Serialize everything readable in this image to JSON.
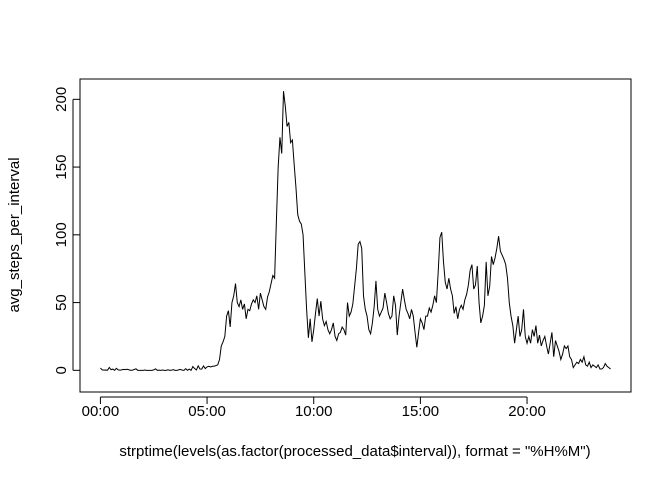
{
  "chart_data": {
    "type": "line",
    "xlabel": "strptime(levels(as.factor(processed_data$interval)), format = \"%H%M\")",
    "ylabel": "avg_steps_per_interval",
    "color": "#000000",
    "x": [
      "00:00",
      "00:05",
      "00:10",
      "00:15",
      "00:20",
      "00:25",
      "00:30",
      "00:35",
      "00:40",
      "00:45",
      "00:50",
      "00:55",
      "01:00",
      "01:05",
      "01:10",
      "01:15",
      "01:20",
      "01:25",
      "01:30",
      "01:35",
      "01:40",
      "01:45",
      "01:50",
      "01:55",
      "02:00",
      "02:05",
      "02:10",
      "02:15",
      "02:20",
      "02:25",
      "02:30",
      "02:35",
      "02:40",
      "02:45",
      "02:50",
      "02:55",
      "03:00",
      "03:05",
      "03:10",
      "03:15",
      "03:20",
      "03:25",
      "03:30",
      "03:35",
      "03:40",
      "03:45",
      "03:50",
      "03:55",
      "04:00",
      "04:05",
      "04:10",
      "04:15",
      "04:20",
      "04:25",
      "04:30",
      "04:35",
      "04:40",
      "04:45",
      "04:50",
      "04:55",
      "05:00",
      "05:05",
      "05:10",
      "05:15",
      "05:20",
      "05:25",
      "05:30",
      "05:35",
      "05:40",
      "05:45",
      "05:50",
      "05:55",
      "06:00",
      "06:05",
      "06:10",
      "06:15",
      "06:20",
      "06:25",
      "06:30",
      "06:35",
      "06:40",
      "06:45",
      "06:50",
      "06:55",
      "07:00",
      "07:05",
      "07:10",
      "07:15",
      "07:20",
      "07:25",
      "07:30",
      "07:35",
      "07:40",
      "07:45",
      "07:50",
      "07:55",
      "08:00",
      "08:05",
      "08:10",
      "08:15",
      "08:20",
      "08:25",
      "08:30",
      "08:35",
      "08:40",
      "08:45",
      "08:50",
      "08:55",
      "09:00",
      "09:05",
      "09:10",
      "09:15",
      "09:20",
      "09:25",
      "09:30",
      "09:35",
      "09:40",
      "09:45",
      "09:50",
      "09:55",
      "10:00",
      "10:05",
      "10:10",
      "10:15",
      "10:20",
      "10:25",
      "10:30",
      "10:35",
      "10:40",
      "10:45",
      "10:50",
      "10:55",
      "11:00",
      "11:05",
      "11:10",
      "11:15",
      "11:20",
      "11:25",
      "11:30",
      "11:35",
      "11:40",
      "11:45",
      "11:50",
      "11:55",
      "12:00",
      "12:05",
      "12:10",
      "12:15",
      "12:20",
      "12:25",
      "12:30",
      "12:35",
      "12:40",
      "12:45",
      "12:50",
      "12:55",
      "13:00",
      "13:05",
      "13:10",
      "13:15",
      "13:20",
      "13:25",
      "13:30",
      "13:35",
      "13:40",
      "13:45",
      "13:50",
      "13:55",
      "14:00",
      "14:05",
      "14:10",
      "14:15",
      "14:20",
      "14:25",
      "14:30",
      "14:35",
      "14:40",
      "14:45",
      "14:50",
      "14:55",
      "15:00",
      "15:05",
      "15:10",
      "15:15",
      "15:20",
      "15:25",
      "15:30",
      "15:35",
      "15:40",
      "15:45",
      "15:50",
      "15:55",
      "16:00",
      "16:05",
      "16:10",
      "16:15",
      "16:20",
      "16:25",
      "16:30",
      "16:35",
      "16:40",
      "16:45",
      "16:50",
      "16:55",
      "17:00",
      "17:05",
      "17:10",
      "17:15",
      "17:20",
      "17:25",
      "17:30",
      "17:35",
      "17:40",
      "17:45",
      "17:50",
      "17:55",
      "18:00",
      "18:05",
      "18:10",
      "18:15",
      "18:20",
      "18:25",
      "18:30",
      "18:35",
      "18:40",
      "18:45",
      "18:50",
      "18:55",
      "19:00",
      "19:05",
      "19:10",
      "19:15",
      "19:20",
      "19:25",
      "19:30",
      "19:35",
      "19:40",
      "19:45",
      "19:50",
      "19:55",
      "20:00",
      "20:05",
      "20:10",
      "20:15",
      "20:20",
      "20:25",
      "20:30",
      "20:35",
      "20:40",
      "20:45",
      "20:50",
      "20:55",
      "21:00",
      "21:05",
      "21:10",
      "21:15",
      "21:20",
      "21:25",
      "21:30",
      "21:35",
      "21:40",
      "21:45",
      "21:50",
      "21:55",
      "22:00",
      "22:05",
      "22:10",
      "22:15",
      "22:20",
      "22:25",
      "22:30",
      "22:35",
      "22:40",
      "22:45",
      "22:50",
      "22:55",
      "23:00",
      "23:05",
      "23:10",
      "23:15",
      "23:20",
      "23:25",
      "23:30",
      "23:35",
      "23:40",
      "23:45",
      "23:50",
      "23:55"
    ],
    "values": [
      1.7,
      0.3,
      0.1,
      0.2,
      0.1,
      2.1,
      0.5,
      0.9,
      0,
      1.5,
      0.3,
      0.1,
      0.3,
      0.7,
      0.5,
      0.8,
      0.4,
      0,
      0.1,
      0.6,
      1.1,
      0,
      0,
      0,
      0,
      0.2,
      0,
      0,
      0,
      0,
      0.3,
      1.1,
      0,
      0.1,
      0,
      0.2,
      0,
      0,
      0.4,
      0,
      0.1,
      0.5,
      0,
      0,
      0.3,
      0.7,
      0.1,
      0,
      1.2,
      0,
      0.9,
      0,
      2.8,
      1.3,
      0.3,
      3.3,
      1.0,
      0.9,
      3.2,
      1.3,
      2.5,
      3,
      2.5,
      3,
      3,
      3.5,
      4,
      8,
      18,
      21,
      25,
      40,
      44,
      32,
      50,
      55,
      64,
      50,
      47,
      52,
      45,
      49,
      38,
      45,
      44,
      49,
      52,
      50,
      55,
      45,
      57,
      52,
      47,
      45,
      54,
      58,
      64,
      70,
      68,
      110,
      150,
      172,
      160,
      206,
      195,
      180,
      183,
      168,
      170,
      152,
      135,
      115,
      110,
      108,
      100,
      72,
      45,
      24,
      38,
      21,
      30,
      42,
      53,
      40,
      51,
      38,
      33,
      36,
      30,
      27,
      30,
      35,
      25,
      22,
      27,
      28,
      32,
      30,
      26,
      50,
      40,
      43,
      49,
      62,
      75,
      93,
      95,
      90,
      55,
      45,
      40,
      30,
      27,
      35,
      47,
      66,
      45,
      40,
      43,
      46,
      57,
      50,
      42,
      38,
      40,
      55,
      48,
      26,
      40,
      50,
      60,
      52,
      45,
      42,
      38,
      45,
      40,
      28,
      17,
      28,
      38,
      35,
      30,
      40,
      40,
      46,
      43,
      48,
      55,
      50,
      72,
      98,
      102,
      80,
      65,
      60,
      68,
      60,
      55,
      42,
      47,
      38,
      45,
      48,
      45,
      52,
      56,
      63,
      74,
      78,
      60,
      63,
      77,
      50,
      35,
      40,
      48,
      80,
      55,
      62,
      84,
      78,
      83,
      90,
      99,
      88,
      85,
      82,
      78,
      68,
      50,
      40,
      33,
      20,
      30,
      40,
      25,
      30,
      45,
      25,
      20,
      25,
      20,
      30,
      25,
      33,
      20,
      26,
      18,
      22,
      25,
      18,
      12,
      20,
      28,
      10,
      22,
      18,
      14,
      8,
      12,
      18,
      16,
      18,
      10,
      8,
      2,
      4,
      6,
      5,
      8,
      6,
      10,
      4,
      3,
      6,
      2,
      4,
      3,
      2,
      4,
      1,
      1,
      2,
      5,
      3,
      2,
      1
    ],
    "ylim": [
      -16,
      215
    ],
    "yticks": [
      0,
      50,
      100,
      150,
      200
    ],
    "xticks": [
      "00:00",
      "05:00",
      "10:00",
      "15:00",
      "20:00"
    ]
  }
}
